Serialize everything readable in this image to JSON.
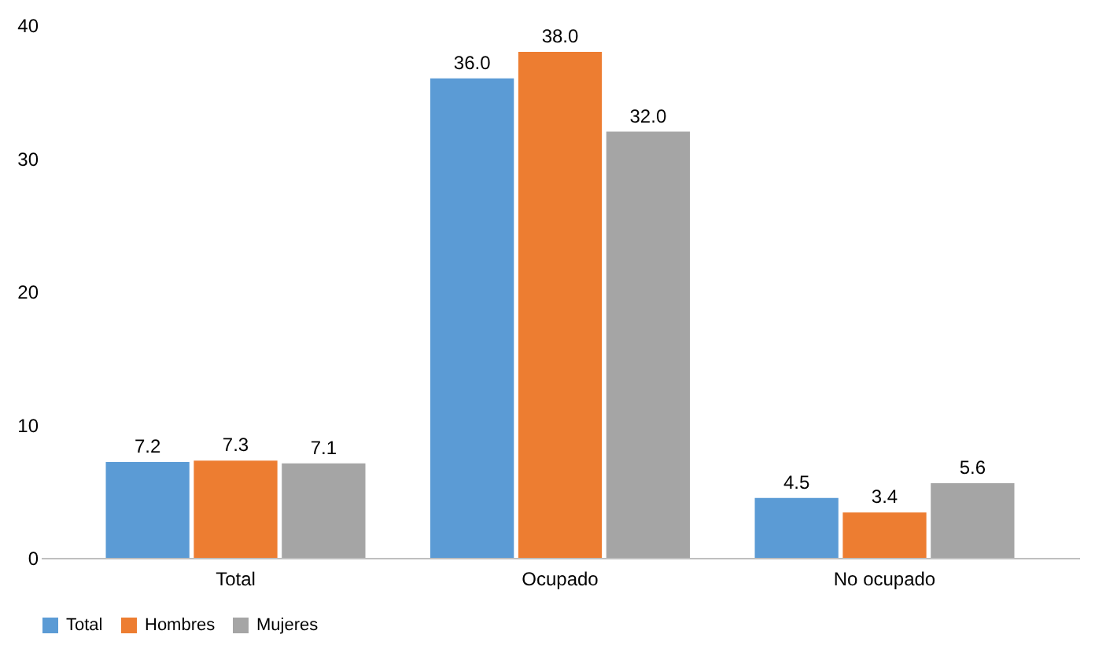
{
  "chart_data": {
    "type": "bar",
    "categories": [
      "Total",
      "Ocupado",
      "No ocupado"
    ],
    "series": [
      {
        "name": "Total",
        "color": "#5b9bd5",
        "values": [
          7.2,
          36.0,
          4.5
        ],
        "value_labels": [
          "7.2",
          "36.0",
          "4.5"
        ]
      },
      {
        "name": "Hombres",
        "color": "#ed7d31",
        "values": [
          7.3,
          38.0,
          3.4
        ],
        "value_labels": [
          "7.3",
          "38.0",
          "3.4"
        ]
      },
      {
        "name": "Mujeres",
        "color": "#a5a5a5",
        "values": [
          7.1,
          32.0,
          5.6
        ],
        "value_labels": [
          "7.1",
          "32.0",
          "5.6"
        ]
      }
    ],
    "ylim": [
      0,
      40
    ],
    "yticks": [
      0,
      10,
      20,
      30,
      40
    ],
    "grid": false,
    "legend": "bottom"
  }
}
